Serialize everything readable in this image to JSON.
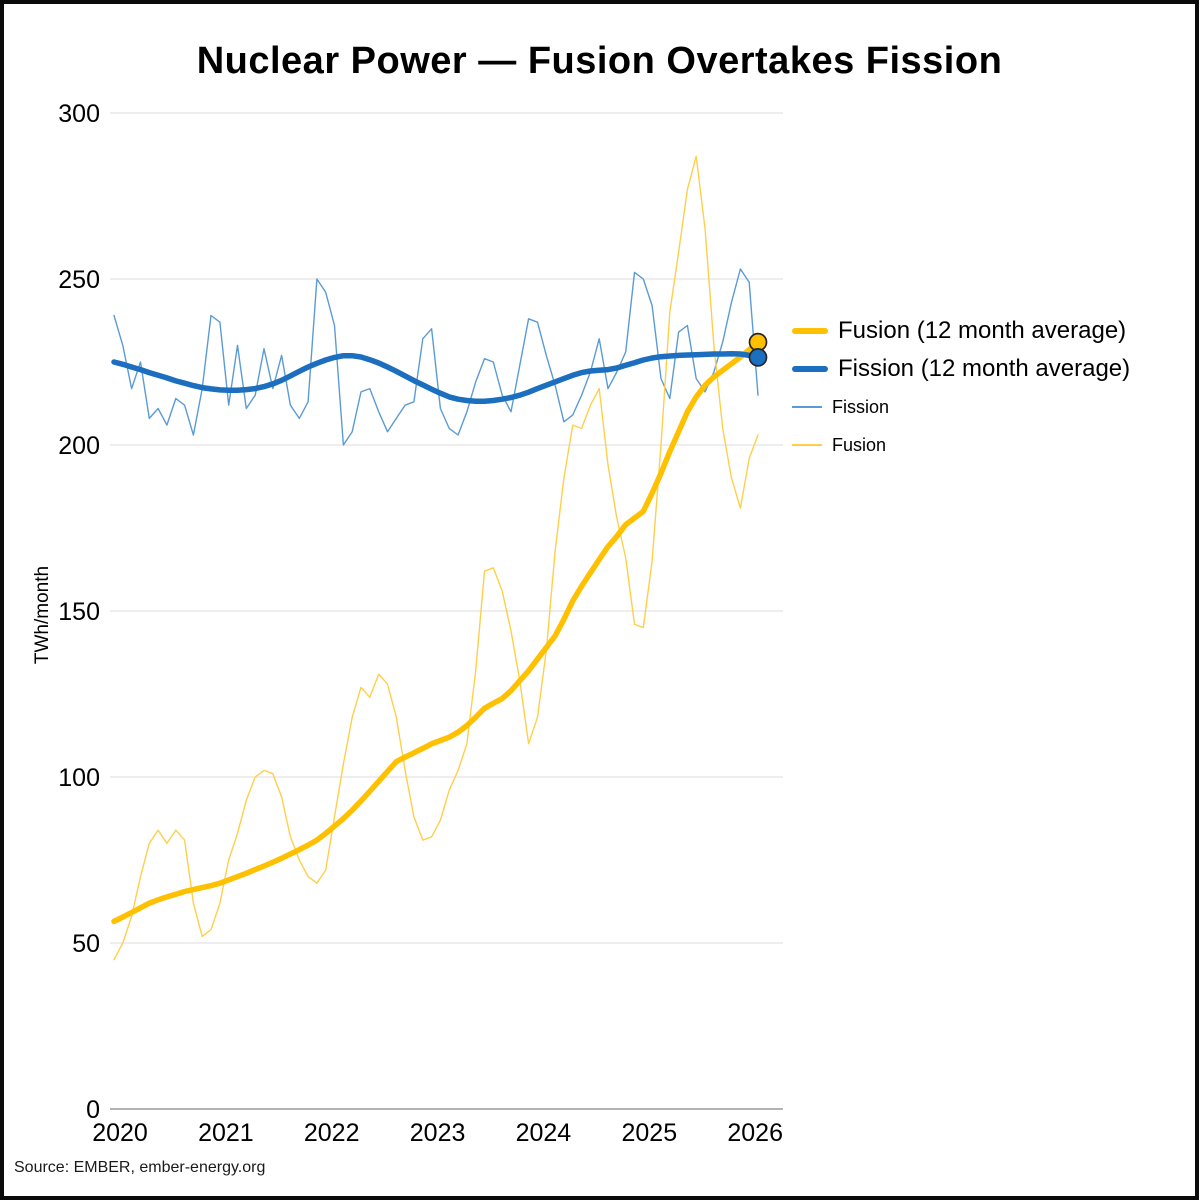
{
  "header": {
    "title": "Nuclear Power — Fusion Overtakes Fission"
  },
  "footer": {
    "source": "Source: EMBER, ember-energy.org"
  },
  "legend": {
    "items": [
      {
        "label": "Fusion (12 month average)",
        "style": "thick",
        "color": "#FFC000"
      },
      {
        "label": "Fission (12 month average)",
        "style": "thick",
        "color": "#1B6FBE"
      },
      {
        "label": "Fission",
        "style": "thin",
        "color": "#5B9BD5"
      },
      {
        "label": "Fusion",
        "style": "thin",
        "color": "#FFCF4A"
      }
    ]
  },
  "chart_data": {
    "type": "line",
    "title": "Nuclear Power — Fusion Overtakes Fission",
    "ylabel": "TWh/month",
    "x_unit": "month",
    "x_start": "2020-01",
    "x_end": "2026-02",
    "x_tick_labels": [
      "2020",
      "2021",
      "2022",
      "2023",
      "2024",
      "2025",
      "2026"
    ],
    "y_ticks": [
      0,
      50,
      100,
      150,
      200,
      250,
      300
    ],
    "ylim": [
      0,
      300
    ],
    "grid": "horizontal-only",
    "legend_position": "right",
    "axis_colors": {
      "gridline": "#DCDCDC",
      "zero_line": "#9A9A9A",
      "text": "#000000"
    },
    "end_dot_outline": "#262626",
    "series": [
      {
        "name": "Fission",
        "role": "monthly",
        "color": "#5B9BD5",
        "width": 1.4,
        "end_dot": false,
        "values": [
          239,
          230,
          217,
          225,
          208,
          211,
          206,
          214,
          212,
          203,
          217,
          239,
          237,
          212,
          230,
          211,
          215,
          229,
          217,
          227,
          212,
          208,
          213,
          250,
          246,
          236,
          200,
          204,
          216,
          217,
          210,
          204,
          208,
          212,
          213,
          232,
          235,
          211,
          205,
          203,
          210,
          219,
          226,
          225,
          215,
          210,
          224,
          238,
          237,
          227,
          218,
          207,
          209,
          215,
          222,
          232,
          217,
          222,
          228,
          252,
          250,
          242,
          220,
          214,
          234,
          236,
          220,
          216,
          222,
          231,
          243,
          253,
          249,
          215
        ]
      },
      {
        "name": "Fusion",
        "role": "monthly",
        "color": "#FFCF4A",
        "width": 1.4,
        "end_dot": false,
        "values": [
          45,
          50,
          58,
          70,
          80,
          84,
          80,
          84,
          81,
          62,
          52,
          54,
          62,
          75,
          83,
          93,
          100,
          102,
          101,
          94,
          82,
          75,
          70,
          68,
          72,
          88,
          104,
          118,
          127,
          124,
          131,
          128,
          118,
          102,
          88,
          81,
          82,
          87,
          96,
          102,
          110,
          132,
          162,
          163,
          156,
          144,
          129,
          110,
          118,
          138,
          168,
          190,
          206,
          205,
          212,
          217,
          194,
          178,
          166,
          146,
          145,
          165,
          200,
          240,
          258,
          277,
          287,
          265,
          230,
          205,
          190,
          181,
          196,
          203
        ]
      },
      {
        "name": "Fusion (12 month average)",
        "role": "average",
        "color": "#FFC000",
        "width": 5.5,
        "end_dot": true,
        "values": [
          56.5,
          57.8,
          59.2,
          60.6,
          62.0,
          63.0,
          63.9,
          64.7,
          65.5,
          66.1,
          66.7,
          67.3,
          68.0,
          69.0,
          70.0,
          71.0,
          72.1,
          73.2,
          74.3,
          75.5,
          76.8,
          78.1,
          79.5,
          81.0,
          83.0,
          85.2,
          87.5,
          90.0,
          92.8,
          95.7,
          98.7,
          101.7,
          104.6,
          106.0,
          107.3,
          108.6,
          110.0,
          111.0,
          112.0,
          113.5,
          115.5,
          118.0,
          120.7,
          122.2,
          123.6,
          126.0,
          129.0,
          132.0,
          135.5,
          139.0,
          142.5,
          147.5,
          153.0,
          157.5,
          161.5,
          165.5,
          169.4,
          172.5,
          176.0,
          178.0,
          180.0,
          185.5,
          191.5,
          198.0,
          204.0,
          210.0,
          214.5,
          218.0,
          220.5,
          222.5,
          224.5,
          226.5,
          228.7,
          231.0
        ]
      },
      {
        "name": "Fission (12 month average)",
        "role": "average",
        "color": "#1B6FBE",
        "width": 5.5,
        "end_dot": true,
        "values": [
          225.0,
          224.3,
          223.5,
          222.7,
          221.8,
          221.0,
          220.2,
          219.3,
          218.6,
          217.9,
          217.3,
          216.9,
          216.6,
          216.5,
          216.5,
          216.7,
          217.0,
          217.6,
          218.4,
          219.5,
          220.8,
          222.2,
          223.5,
          224.6,
          225.6,
          226.4,
          226.9,
          226.9,
          226.5,
          225.7,
          224.7,
          223.5,
          222.2,
          220.8,
          219.4,
          218.1,
          216.8,
          215.6,
          214.5,
          213.8,
          213.4,
          213.2,
          213.2,
          213.4,
          213.8,
          214.3,
          215.0,
          215.9,
          217.0,
          218.0,
          219.0,
          220.0,
          221.0,
          221.8,
          222.3,
          222.5,
          222.7,
          223.2,
          224.0,
          224.8,
          225.6,
          226.2,
          226.6,
          226.8,
          227.0,
          227.1,
          227.2,
          227.3,
          227.4,
          227.4,
          227.5,
          227.4,
          227.0,
          226.4
        ]
      }
    ]
  }
}
